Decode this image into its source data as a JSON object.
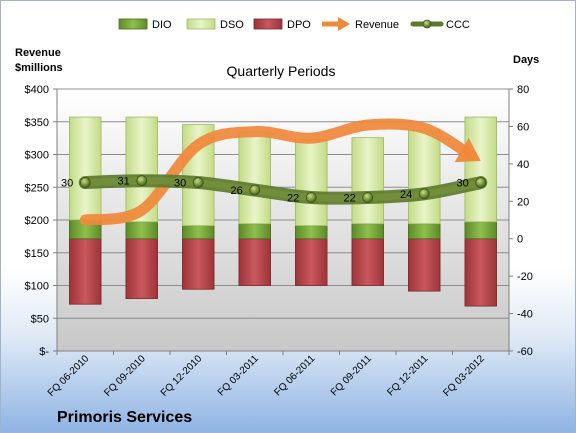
{
  "chart_data": {
    "type": "bar",
    "title": "Quarterly Periods",
    "company": "Primoris Services",
    "left_axis_title": [
      "Revenue",
      "$millions"
    ],
    "right_axis_title": "Days",
    "categories": [
      "FQ 06-2010",
      "FQ 09-2010",
      "FQ 12-2010",
      "FQ 03-2011",
      "FQ 06-2011",
      "FQ 09-2011",
      "FQ 12-2011",
      "FQ 03-2012"
    ],
    "left_axis": {
      "min": 0,
      "max": 400,
      "ticks": [
        "$-",
        "$50",
        "$100",
        "$150",
        "$200",
        "$250",
        "$300",
        "$350",
        "$400"
      ]
    },
    "right_axis": {
      "min": -60,
      "max": 80,
      "ticks": [
        "-60",
        "-40",
        "-20",
        "0",
        "20",
        "40",
        "60",
        "80"
      ]
    },
    "series": [
      {
        "name": "DIO",
        "axis": "days",
        "values": [
          10,
          9,
          7,
          8,
          7,
          8,
          8,
          9
        ],
        "color": "#76a83a"
      },
      {
        "name": "DSO",
        "axis": "days",
        "values": [
          55,
          56,
          54,
          49,
          46,
          46,
          50,
          56
        ],
        "color": "#d7e9a8"
      },
      {
        "name": "DPO",
        "axis": "days",
        "values": [
          -35,
          -32,
          -27,
          -25,
          -25,
          -25,
          -28,
          -36
        ],
        "color": "#b8474c"
      },
      {
        "name": "Revenue",
        "axis": "revenue",
        "values": [
          200,
          215,
          315,
          335,
          325,
          345,
          340,
          290
        ],
        "color": "#f0883a"
      },
      {
        "name": "CCC",
        "axis": "days",
        "values": [
          30,
          31,
          30,
          26,
          22,
          22,
          24,
          30
        ],
        "labels": [
          "30",
          "31",
          "30",
          "26",
          "22",
          "22",
          "24",
          "30"
        ],
        "color": "#5c7a2c"
      }
    ],
    "legend": {
      "position": "top",
      "items": [
        "DIO",
        "DSO",
        "DPO",
        "Revenue",
        "CCC"
      ]
    },
    "grid": true
  }
}
